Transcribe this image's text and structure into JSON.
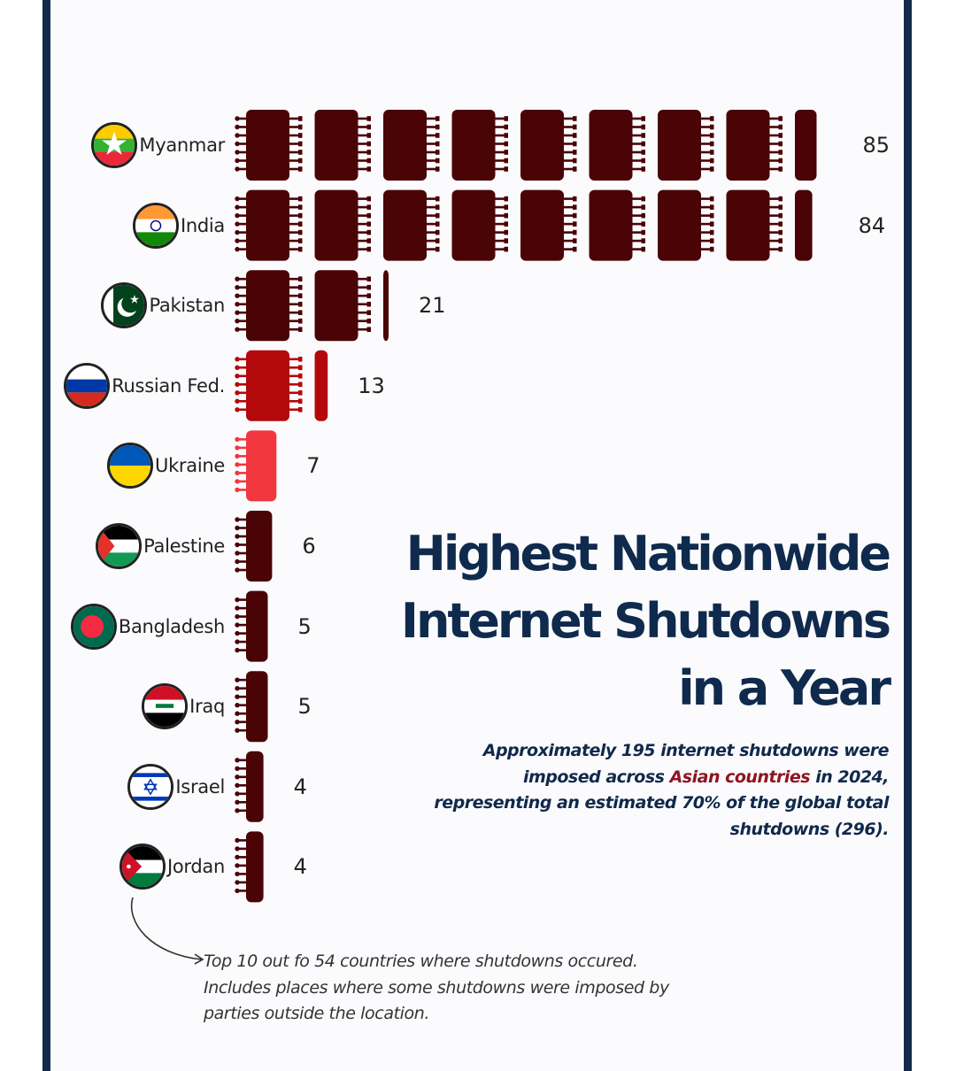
{
  "title": {
    "line1": "Highest Nationwide",
    "line2": "Internet Shutdowns",
    "line3": "in a Year"
  },
  "subtitle": {
    "part1": "Approximately 195 internet shutdowns were imposed across ",
    "highlight": "Asian countries",
    "part2": " in 2024, representing an estimated 70% of the global total shutdowns (296)."
  },
  "note": "Top 10 out fo 54 countries where shutdowns occured. Includes places where some shutdowns were imposed by parties outside the location.",
  "colors": {
    "dark": "#4a0406",
    "russia": "#b3080c",
    "ukraine": "#f1373f",
    "title": "#0f2a4d",
    "accent": "#8e1520"
  },
  "chart_data": {
    "type": "bar",
    "orientation": "horizontal",
    "unit_per_chip": 10,
    "categories": [
      "Myanmar",
      "India",
      "Pakistan",
      "Russian Fed.",
      "Ukraine",
      "Palestine",
      "Bangladesh",
      "Iraq",
      "Israel",
      "Jordan"
    ],
    "values": [
      85,
      84,
      21,
      13,
      7,
      6,
      5,
      5,
      4,
      4
    ],
    "flag_icons": [
      "myanmar-flag-icon",
      "india-flag-icon",
      "pakistan-flag-icon",
      "russia-flag-icon",
      "ukraine-flag-icon",
      "palestine-flag-icon",
      "bangladesh-flag-icon",
      "iraq-flag-icon",
      "israel-flag-icon",
      "jordan-flag-icon"
    ],
    "bar_colors": [
      "#4a0406",
      "#4a0406",
      "#4a0406",
      "#b3080c",
      "#f1373f",
      "#4a0406",
      "#4a0406",
      "#4a0406",
      "#4a0406",
      "#4a0406"
    ]
  }
}
